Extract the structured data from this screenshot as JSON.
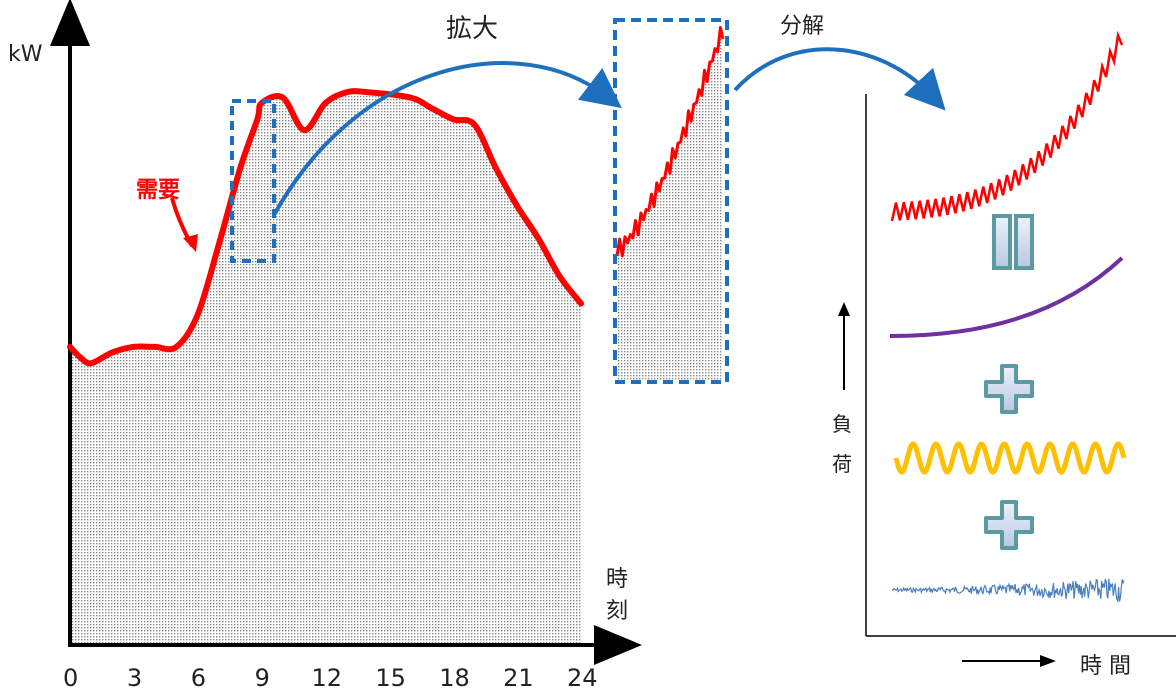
{
  "chart_data": {
    "type": "area",
    "ylabel": "kW",
    "xlabel": "時刻",
    "x_ticks": [
      "0",
      "3",
      "6",
      "9",
      "12",
      "15",
      "18",
      "21",
      "24"
    ],
    "series": [
      {
        "name": "需要",
        "x": [
          0,
          0.5,
          1,
          2,
          3,
          4,
          5,
          6,
          7,
          8,
          8.8,
          9,
          10,
          11,
          12,
          13,
          14,
          16,
          17,
          18,
          19,
          20,
          21,
          22,
          23,
          24
        ],
        "y": [
          0.55,
          0.53,
          0.52,
          0.54,
          0.55,
          0.55,
          0.55,
          0.61,
          0.74,
          0.88,
          0.97,
          1.0,
          1.01,
          0.95,
          1.0,
          1.02,
          1.02,
          1.01,
          0.99,
          0.97,
          0.96,
          0.88,
          0.81,
          0.75,
          0.68,
          0.63
        ]
      }
    ],
    "color": "#ff0000"
  },
  "labels": {
    "ylabel": "kW",
    "xlabel": "時刻",
    "demand": "需要",
    "zoom": "拡大",
    "decompose": "分解",
    "load": "負荷",
    "time": "時 間"
  },
  "ticks": [
    "0",
    "3",
    "6",
    "9",
    "12",
    "15",
    "18",
    "21",
    "24"
  ],
  "colors": {
    "demand": "#ff0000",
    "trend": "#7030a0",
    "periodic": "#ffc000",
    "noise": "#4a7fc1",
    "arrow": "#1f6fbf",
    "box": "#1f6fbf",
    "symbol_fill": "#c9d6ec",
    "symbol_stroke": "#5a9aa0"
  },
  "symbols": [
    "equals-icon",
    "plus-icon",
    "plus-icon"
  ]
}
